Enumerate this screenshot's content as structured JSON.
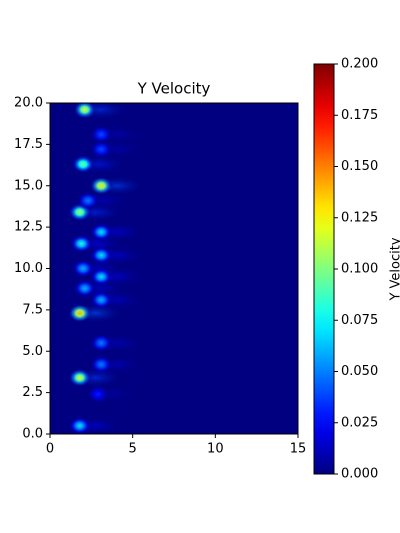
{
  "chart_data": {
    "type": "heatmap",
    "title": "Y Velocity",
    "colorbar_label": "Y Velocity",
    "colorscale": "jet",
    "xlim": [
      0,
      15
    ],
    "xticks": [
      0,
      5,
      10,
      15
    ],
    "ylim": [
      0,
      20
    ],
    "yticks": [
      {
        "value": 0,
        "label": "0.0"
      },
      2.5,
      {
        "value": 5,
        "label": "5.0"
      },
      7.5,
      {
        "value": 10,
        "label": "10.0"
      },
      12.5,
      {
        "value": 15,
        "label": "15.0"
      },
      17.5,
      {
        "value": 20,
        "label": "20.0"
      }
    ],
    "clim": [
      0,
      0.2
    ],
    "cticks": [
      {
        "value": 0,
        "label": "0.000"
      },
      {
        "value": 0.025,
        "label": "0.025"
      },
      {
        "value": 0.05,
        "label": "0.050"
      },
      {
        "value": 0.075,
        "label": "0.075"
      },
      {
        "value": 0.1,
        "label": "0.100"
      },
      {
        "value": 0.125,
        "label": "0.125"
      },
      {
        "value": 0.15,
        "label": "0.150"
      },
      {
        "value": 0.175,
        "label": "0.175"
      },
      {
        "value": 0.2,
        "label": "0.200"
      }
    ],
    "blobs": [
      {
        "x": 2.1,
        "y": 19.6,
        "value": 0.12
      },
      {
        "x": 2.0,
        "y": 16.3,
        "value": 0.1
      },
      {
        "x": 1.8,
        "y": 13.4,
        "value": 0.11
      },
      {
        "x": 1.9,
        "y": 11.5,
        "value": 0.08
      },
      {
        "x": 2.0,
        "y": 10.0,
        "value": 0.06
      },
      {
        "x": 2.1,
        "y": 8.8,
        "value": 0.06
      },
      {
        "x": 1.8,
        "y": 7.3,
        "value": 0.14
      },
      {
        "x": 1.8,
        "y": 3.4,
        "value": 0.12
      },
      {
        "x": 1.8,
        "y": 0.5,
        "value": 0.07
      },
      {
        "x": 2.3,
        "y": 14.1,
        "value": 0.05
      },
      {
        "x": 3.1,
        "y": 15.0,
        "value": 0.13
      },
      {
        "x": 3.1,
        "y": 18.1,
        "value": 0.04
      },
      {
        "x": 3.1,
        "y": 17.2,
        "value": 0.04
      },
      {
        "x": 3.1,
        "y": 12.2,
        "value": 0.07
      },
      {
        "x": 3.1,
        "y": 10.8,
        "value": 0.07
      },
      {
        "x": 3.1,
        "y": 9.5,
        "value": 0.07
      },
      {
        "x": 3.1,
        "y": 8.1,
        "value": 0.06
      },
      {
        "x": 3.1,
        "y": 5.5,
        "value": 0.05
      },
      {
        "x": 3.1,
        "y": 4.2,
        "value": 0.05
      },
      {
        "x": 2.9,
        "y": 2.4,
        "value": 0.03
      }
    ]
  }
}
